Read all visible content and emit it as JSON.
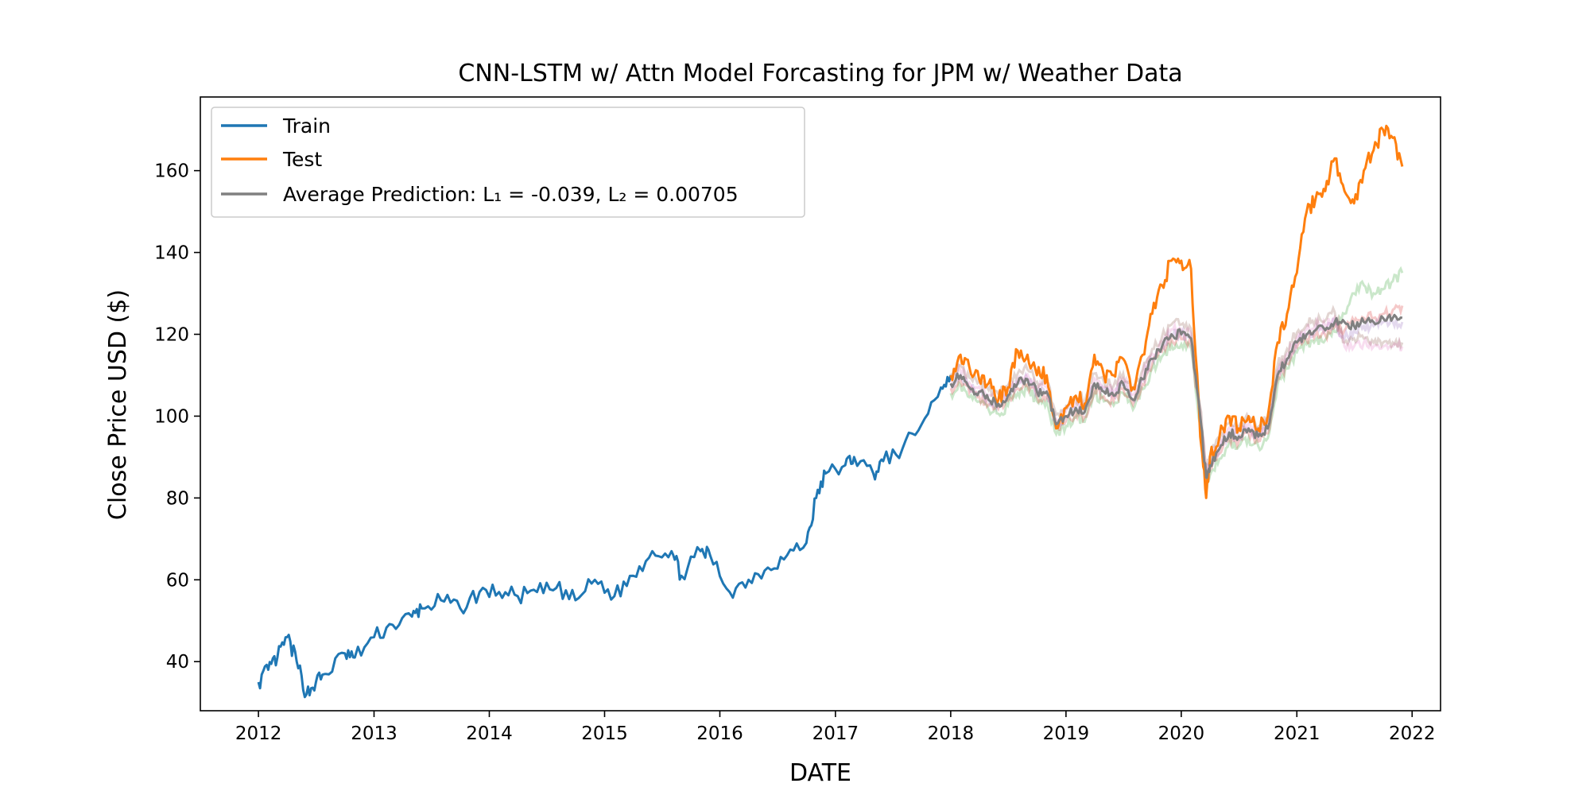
{
  "chart_data": {
    "type": "line",
    "title": "CNN-LSTM w/ Attn Model Forcasting for JPM w/ Weather Data",
    "xlabel": "DATE",
    "ylabel": "Close Price USD ($)",
    "xlim": [
      "2011-07-01",
      "2022-04-01"
    ],
    "ylim": [
      28,
      178
    ],
    "x_ticks": [
      "2012",
      "2013",
      "2014",
      "2015",
      "2016",
      "2017",
      "2018",
      "2019",
      "2020",
      "2021",
      "2022"
    ],
    "y_ticks": [
      40,
      60,
      80,
      100,
      120,
      140,
      160
    ],
    "grid": false,
    "legend_position": "top-left",
    "series": [
      {
        "name": "Train",
        "color": "#1f77b4",
        "points": [
          [
            "2012-01-01",
            35
          ],
          [
            "2012-02-01",
            38
          ],
          [
            "2012-03-01",
            41
          ],
          [
            "2012-04-01",
            46
          ],
          [
            "2012-05-01",
            40
          ],
          [
            "2012-06-01",
            32
          ],
          [
            "2012-07-01",
            35
          ],
          [
            "2012-08-01",
            37
          ],
          [
            "2012-10-01",
            42
          ],
          [
            "2012-11-01",
            41
          ],
          [
            "2013-01-01",
            46
          ],
          [
            "2013-03-01",
            49
          ],
          [
            "2013-05-01",
            51
          ],
          [
            "2013-06-01",
            53
          ],
          [
            "2013-08-01",
            55
          ],
          [
            "2013-10-01",
            53
          ],
          [
            "2013-12-01",
            57
          ],
          [
            "2014-02-01",
            57
          ],
          [
            "2014-04-01",
            56
          ],
          [
            "2014-06-01",
            57
          ],
          [
            "2014-08-01",
            58
          ],
          [
            "2014-10-01",
            55
          ],
          [
            "2014-12-01",
            60
          ],
          [
            "2015-02-01",
            56
          ],
          [
            "2015-04-01",
            61
          ],
          [
            "2015-06-01",
            67
          ],
          [
            "2015-08-01",
            67
          ],
          [
            "2015-09-01",
            61
          ],
          [
            "2015-11-01",
            67
          ],
          [
            "2015-12-01",
            66
          ],
          [
            "2016-02-01",
            57
          ],
          [
            "2016-04-01",
            60
          ],
          [
            "2016-06-01",
            63
          ],
          [
            "2016-08-01",
            66
          ],
          [
            "2016-10-01",
            69
          ],
          [
            "2016-11-01",
            80
          ],
          [
            "2016-12-01",
            86
          ],
          [
            "2017-02-01",
            88
          ],
          [
            "2017-03-01",
            90
          ],
          [
            "2017-05-01",
            86
          ],
          [
            "2017-06-01",
            89
          ],
          [
            "2017-08-01",
            92
          ],
          [
            "2017-10-01",
            98
          ],
          [
            "2017-12-01",
            107
          ],
          [
            "2018-01-01",
            110
          ]
        ]
      },
      {
        "name": "Test",
        "color": "#ff7f0e",
        "points": [
          [
            "2018-01-01",
            110
          ],
          [
            "2018-02-01",
            115
          ],
          [
            "2018-03-01",
            112
          ],
          [
            "2018-04-01",
            109
          ],
          [
            "2018-05-01",
            108
          ],
          [
            "2018-06-01",
            104
          ],
          [
            "2018-07-01",
            107
          ],
          [
            "2018-08-01",
            116
          ],
          [
            "2018-09-01",
            115
          ],
          [
            "2018-10-01",
            110
          ],
          [
            "2018-11-01",
            110
          ],
          [
            "2018-12-01",
            97
          ],
          [
            "2019-01-01",
            102
          ],
          [
            "2019-02-01",
            105
          ],
          [
            "2019-03-01",
            103
          ],
          [
            "2019-04-01",
            115
          ],
          [
            "2019-05-01",
            110
          ],
          [
            "2019-06-01",
            110
          ],
          [
            "2019-07-01",
            114
          ],
          [
            "2019-08-01",
            107
          ],
          [
            "2019-09-01",
            115
          ],
          [
            "2019-10-01",
            125
          ],
          [
            "2019-11-01",
            132
          ],
          [
            "2019-12-01",
            138
          ],
          [
            "2020-01-01",
            138
          ],
          [
            "2020-02-01",
            136
          ],
          [
            "2020-03-01",
            95
          ],
          [
            "2020-03-20",
            80
          ],
          [
            "2020-04-01",
            90
          ],
          [
            "2020-05-01",
            95
          ],
          [
            "2020-06-01",
            100
          ],
          [
            "2020-07-01",
            97
          ],
          [
            "2020-08-01",
            100
          ],
          [
            "2020-09-01",
            97
          ],
          [
            "2020-10-01",
            100
          ],
          [
            "2020-11-01",
            118
          ],
          [
            "2020-12-01",
            125
          ],
          [
            "2021-01-01",
            135
          ],
          [
            "2021-02-01",
            150
          ],
          [
            "2021-03-01",
            153
          ],
          [
            "2021-04-01",
            155
          ],
          [
            "2021-05-01",
            163
          ],
          [
            "2021-06-01",
            155
          ],
          [
            "2021-07-01",
            152
          ],
          [
            "2021-08-01",
            160
          ],
          [
            "2021-09-01",
            165
          ],
          [
            "2021-10-01",
            170
          ],
          [
            "2021-11-01",
            168
          ],
          [
            "2021-12-01",
            161
          ]
        ]
      },
      {
        "name": "Average Prediction: L₁ = -0.039, L₂ = 0.00705",
        "color": "#808080",
        "points": [
          [
            "2018-01-01",
            108
          ],
          [
            "2018-02-01",
            110
          ],
          [
            "2018-03-01",
            107
          ],
          [
            "2018-04-01",
            106
          ],
          [
            "2018-05-01",
            104
          ],
          [
            "2018-06-01",
            103
          ],
          [
            "2018-07-01",
            105
          ],
          [
            "2018-08-01",
            108
          ],
          [
            "2018-09-01",
            109
          ],
          [
            "2018-10-01",
            106
          ],
          [
            "2018-11-01",
            106
          ],
          [
            "2018-12-01",
            98
          ],
          [
            "2019-01-01",
            100
          ],
          [
            "2019-02-01",
            102
          ],
          [
            "2019-03-01",
            101
          ],
          [
            "2019-04-01",
            108
          ],
          [
            "2019-05-01",
            106
          ],
          [
            "2019-06-01",
            105
          ],
          [
            "2019-07-01",
            108
          ],
          [
            "2019-08-01",
            104
          ],
          [
            "2019-09-01",
            109
          ],
          [
            "2019-10-01",
            114
          ],
          [
            "2019-11-01",
            117
          ],
          [
            "2019-12-01",
            120
          ],
          [
            "2020-01-01",
            120
          ],
          [
            "2020-02-01",
            119
          ],
          [
            "2020-03-01",
            100
          ],
          [
            "2020-03-20",
            85
          ],
          [
            "2020-04-01",
            88
          ],
          [
            "2020-05-01",
            92
          ],
          [
            "2020-06-01",
            96
          ],
          [
            "2020-07-01",
            95
          ],
          [
            "2020-08-01",
            97
          ],
          [
            "2020-09-01",
            95
          ],
          [
            "2020-10-01",
            97
          ],
          [
            "2020-11-01",
            110
          ],
          [
            "2020-12-01",
            114
          ],
          [
            "2021-01-01",
            118
          ],
          [
            "2021-02-01",
            120
          ],
          [
            "2021-03-01",
            121
          ],
          [
            "2021-04-01",
            121
          ],
          [
            "2021-05-01",
            123
          ],
          [
            "2021-06-01",
            123
          ],
          [
            "2021-07-01",
            122
          ],
          [
            "2021-08-01",
            123
          ],
          [
            "2021-09-01",
            123
          ],
          [
            "2021-10-01",
            124
          ],
          [
            "2021-11-01",
            124
          ],
          [
            "2021-12-01",
            124
          ]
        ]
      }
    ],
    "faint_runs": [
      {
        "color": "#2ca02c",
        "opacity": 0.25,
        "end_values": [
          125,
          130,
          132,
          130,
          131,
          133,
          135
        ]
      },
      {
        "color": "#d62728",
        "opacity": 0.25,
        "end_values": [
          121,
          123,
          124,
          124,
          125,
          126,
          127
        ]
      },
      {
        "color": "#9467bd",
        "opacity": 0.25,
        "end_values": [
          119,
          121,
          122,
          122,
          123,
          123,
          123
        ]
      },
      {
        "color": "#e377c2",
        "opacity": 0.25,
        "end_values": [
          117,
          117,
          118,
          117,
          117,
          117,
          117
        ]
      },
      {
        "color": "#8c564b",
        "opacity": 0.25,
        "end_values": [
          118,
          119,
          119,
          118,
          118,
          118,
          118
        ]
      }
    ]
  }
}
